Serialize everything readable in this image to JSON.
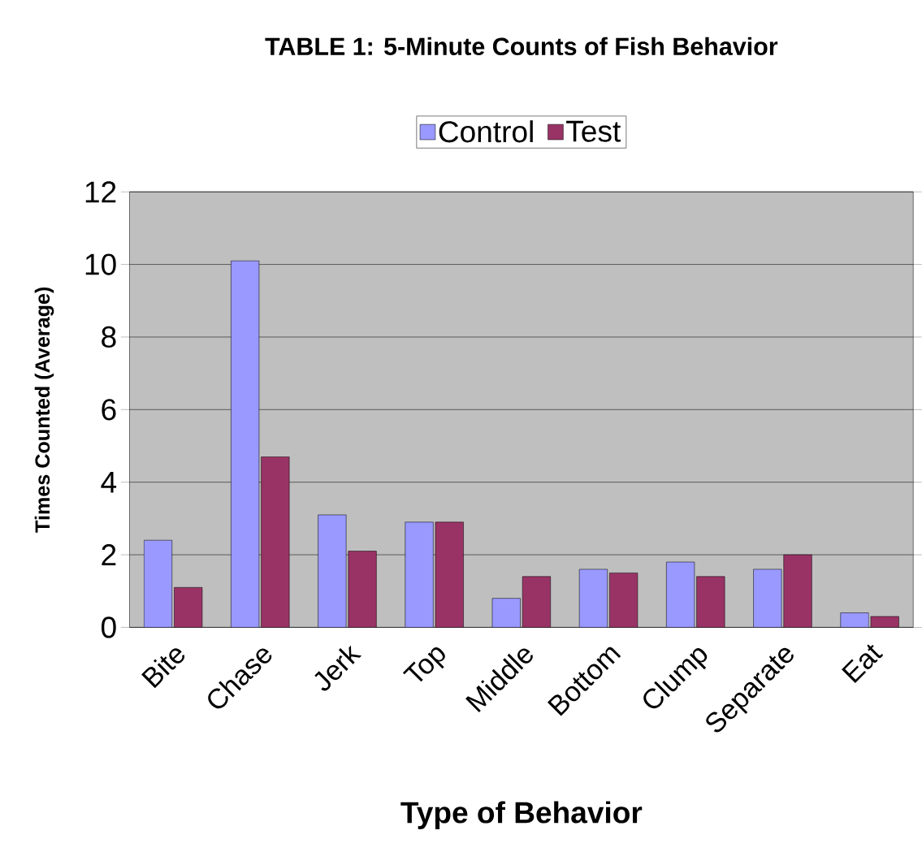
{
  "chart_data": {
    "type": "bar",
    "title": "TABLE 1:  5-Minute Counts of Fish Behavior",
    "xlabel": "Type of Behavior",
    "ylabel": "Times Counted (Average)",
    "categories": [
      "Bite",
      "Chase",
      "Jerk",
      "Top",
      "Middle",
      "Bottom",
      "Clump",
      "Separate",
      "Eat"
    ],
    "series": [
      {
        "name": "Control",
        "color": "#9999ff",
        "values": [
          2.4,
          10.1,
          3.1,
          2.9,
          0.8,
          1.6,
          1.8,
          1.6,
          0.4
        ]
      },
      {
        "name": "Test",
        "color": "#993366",
        "values": [
          1.1,
          4.7,
          2.1,
          2.9,
          1.4,
          1.5,
          1.4,
          2.0,
          0.3
        ]
      }
    ],
    "ylim": [
      0,
      12
    ],
    "yticks": [
      0,
      2,
      4,
      6,
      8,
      10,
      12
    ],
    "grid": "y",
    "legend": "top"
  }
}
